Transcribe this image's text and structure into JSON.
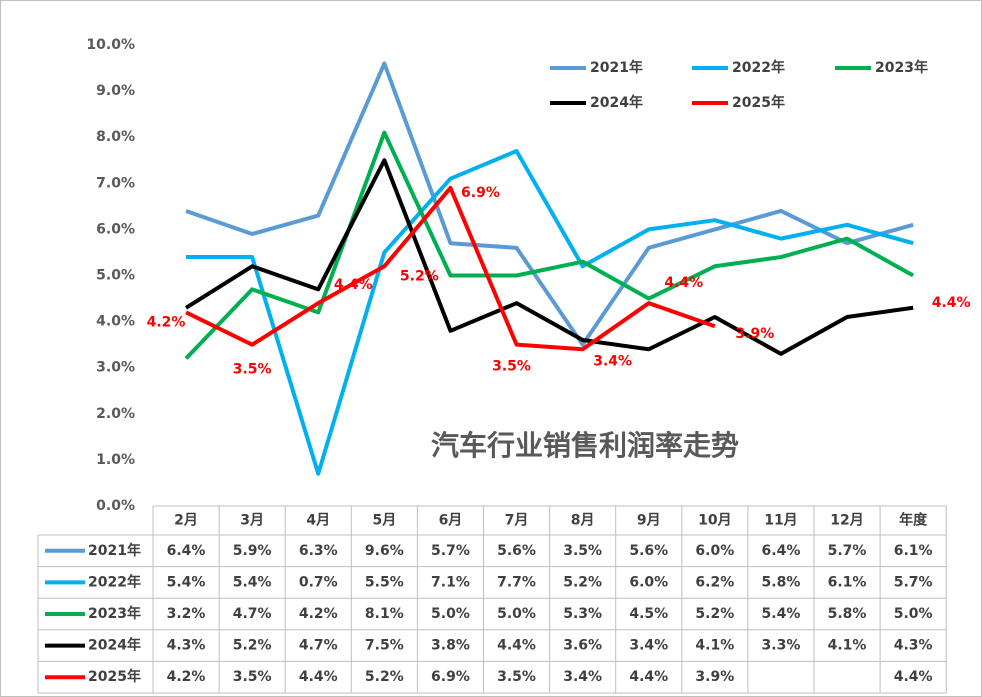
{
  "chart_data": {
    "type": "line",
    "title": "汽车行业销售利润率走势",
    "categories": [
      "2月",
      "3月",
      "4月",
      "5月",
      "6月",
      "7月",
      "8月",
      "9月",
      "10月",
      "11月",
      "12月",
      "年度"
    ],
    "ylim": [
      0,
      10
    ],
    "yticks": [
      {
        "value": 0,
        "label": "0.0%"
      },
      {
        "value": 1,
        "label": "1.0%"
      },
      {
        "value": 2,
        "label": "2.0%"
      },
      {
        "value": 3,
        "label": "3.0%"
      },
      {
        "value": 4,
        "label": "4.0%"
      },
      {
        "value": 5,
        "label": "5.0%"
      },
      {
        "value": 6,
        "label": "6.0%"
      },
      {
        "value": 7,
        "label": "7.0%"
      },
      {
        "value": 8,
        "label": "8.0%"
      },
      {
        "value": 9,
        "label": "9.0%"
      },
      {
        "value": 10,
        "label": "10.0%"
      }
    ],
    "grid": false,
    "series": [
      {
        "name": "2021年",
        "color": "#5b9bd5",
        "values": [
          6.4,
          5.9,
          6.3,
          9.6,
          5.7,
          5.6,
          3.5,
          5.6,
          6.0,
          6.4,
          5.7,
          6.1
        ],
        "value_labels": [
          "6.4%",
          "5.9%",
          "6.3%",
          "9.6%",
          "5.7%",
          "5.6%",
          "3.5%",
          "5.6%",
          "6.0%",
          "6.4%",
          "5.7%",
          "6.1%"
        ]
      },
      {
        "name": "2022年",
        "color": "#00b0f0",
        "values": [
          5.4,
          5.4,
          0.7,
          5.5,
          7.1,
          7.7,
          5.2,
          6.0,
          6.2,
          5.8,
          6.1,
          5.7
        ],
        "value_labels": [
          "5.4%",
          "5.4%",
          "0.7%",
          "5.5%",
          "7.1%",
          "7.7%",
          "5.2%",
          "6.0%",
          "6.2%",
          "5.8%",
          "6.1%",
          "5.7%"
        ]
      },
      {
        "name": "2023年",
        "color": "#00b050",
        "values": [
          3.2,
          4.7,
          4.2,
          8.1,
          5.0,
          5.0,
          5.3,
          4.5,
          5.2,
          5.4,
          5.8,
          5.0
        ],
        "value_labels": [
          "3.2%",
          "4.7%",
          "4.2%",
          "8.1%",
          "5.0%",
          "5.0%",
          "5.3%",
          "4.5%",
          "5.2%",
          "5.4%",
          "5.8%",
          "5.0%"
        ]
      },
      {
        "name": "2024年",
        "color": "#000000",
        "values": [
          4.3,
          5.2,
          4.7,
          7.5,
          3.8,
          4.4,
          3.6,
          3.4,
          4.1,
          3.3,
          4.1,
          4.3
        ],
        "value_labels": [
          "4.3%",
          "5.2%",
          "4.7%",
          "7.5%",
          "3.8%",
          "4.4%",
          "3.6%",
          "3.4%",
          "4.1%",
          "3.3%",
          "4.1%",
          "4.3%"
        ]
      },
      {
        "name": "2025年",
        "color": "#ff0000",
        "values": [
          4.2,
          3.5,
          4.4,
          5.2,
          6.9,
          3.5,
          3.4,
          4.4,
          3.9,
          null,
          null,
          4.4
        ],
        "value_labels": [
          "4.2%",
          "3.5%",
          "4.4%",
          "5.2%",
          "6.9%",
          "3.5%",
          "3.4%",
          "4.4%",
          "3.9%",
          null,
          null,
          "4.4%"
        ]
      }
    ]
  }
}
